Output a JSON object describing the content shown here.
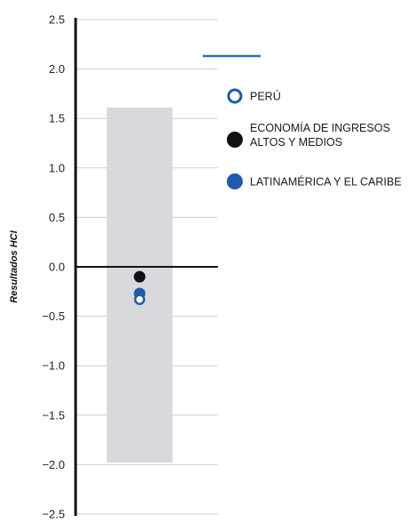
{
  "chart_data": {
    "type": "scatter",
    "title": "",
    "xlabel": "",
    "ylabel": "Resultados HCI",
    "ylim": [
      -2.5,
      2.5
    ],
    "yticks": [
      "2.5",
      "2.0",
      "1.5",
      "1.0",
      "0.5",
      "0.0",
      "−0.5",
      "−1.0",
      "−1.5",
      "−2.0",
      "−2.5"
    ],
    "ytick_values": [
      2.5,
      2.0,
      1.5,
      1.0,
      0.5,
      0.0,
      -0.5,
      -1.0,
      -1.5,
      -2.0,
      -2.5
    ],
    "grid": true,
    "range_band": {
      "low": -1.98,
      "high": 1.61,
      "color": "#d9d9dd"
    },
    "series": [
      {
        "name": "PERÚ",
        "values": [
          -0.33
        ],
        "color": "#1f5ba8",
        "marker": "hollow-circle"
      },
      {
        "name": "ECONOMÍA DE INGRESOS ALTOS Y MEDIOS",
        "values": [
          -0.1
        ],
        "color": "#111111",
        "marker": "circle"
      },
      {
        "name": "LATINAMÉRICA Y EL CARIBE",
        "values": [
          -0.27
        ],
        "color": "#1f5ba8",
        "marker": "circle"
      }
    ],
    "legend": {
      "placement": "right",
      "items": [
        {
          "lines": [
            "PERÚ"
          ]
        },
        {
          "lines": [
            "ECONOMÍA DE INGRESOS",
            "ALTOS Y MEDIOS"
          ]
        },
        {
          "lines": [
            "LATINAMÉRICA Y EL CARIBE"
          ]
        }
      ]
    },
    "colors": {
      "axis": "#111111",
      "grid": "#cfcfcf",
      "legend_line": "#2f6fba"
    }
  }
}
